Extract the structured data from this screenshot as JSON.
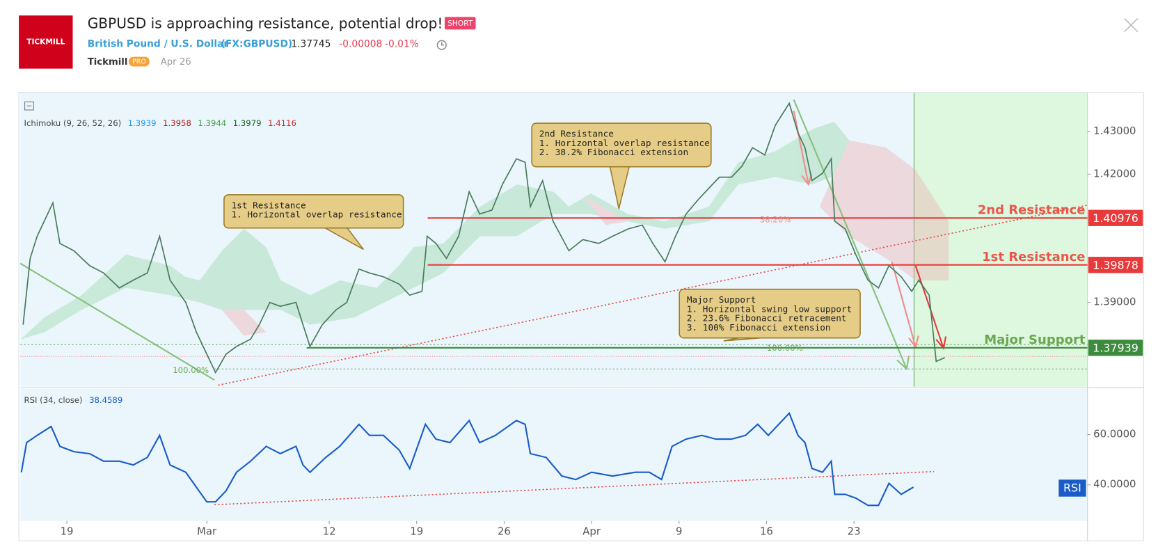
{
  "header": {
    "logo": "TICKMILL",
    "title": "GBPUSD is approaching resistance, potential drop!",
    "badge": "SHORT",
    "symbol_name": "British Pound / U.S. Dollar",
    "symbol": "(FX:GBPUSD)",
    "price": "1.37745",
    "change": "-0.00008",
    "change_pct": "-0.01%",
    "author": "Tickmill",
    "author_badge": "PRO",
    "date": "Apr 26"
  },
  "chart_data": [
    {
      "type": "line",
      "indicator": {
        "name": "Ichimoku (9, 26, 52, 26)",
        "values": [
          {
            "text": "1.3939",
            "color": "#2196f3"
          },
          {
            "text": "1.3958",
            "color": "#b71c1c"
          },
          {
            "text": "1.3944",
            "color": "#43a047"
          },
          {
            "text": "1.3979",
            "color": "#1b5e20"
          },
          {
            "text": "1.4116",
            "color": "#c62828"
          }
        ]
      },
      "x": [
        -2.5,
        -2.1,
        -1.7,
        -0.8,
        -0.4,
        0.4,
        1.3,
        2.1,
        3.0,
        3.8,
        4.6,
        5.3,
        5.9,
        6.8,
        7.4,
        8.0,
        8.5,
        9.1,
        9.7,
        10.5,
        11.0,
        11.6,
        12.2,
        13.1,
        13.5,
        13.9,
        14.6,
        15.4,
        16.0,
        16.7,
        17.3,
        18.1,
        19.0,
        19.6,
        20.3,
        20.6,
        21.1,
        21.7,
        22.4,
        23.0,
        23.6,
        24.3,
        24.9,
        25.7,
        26.2,
        26.5,
        27.2,
        27.8,
        28.7,
        29.5,
        30.4,
        31.2,
        32.1,
        32.9,
        33.5,
        34.2,
        34.8,
        35.4,
        36.1,
        36.7,
        37.3,
        38.0,
        38.6,
        39.2,
        39.9,
        40.5,
        41.3,
        41.8,
        42.2,
        42.6,
        43.2,
        43.7,
        43.9,
        44.5,
        45.1,
        45.8,
        46.4,
        47.0,
        47.7,
        48.3,
        48.7,
        49.3,
        49.7,
        50.2
      ],
      "series": [
        {
          "name": "GBPUSD",
          "color": "#4b7a5c",
          "values": [
            1.3848,
            1.4003,
            1.4055,
            1.4133,
            1.4038,
            1.4021,
            1.3986,
            1.3969,
            1.3934,
            1.3952,
            1.3969,
            1.4055,
            1.3952,
            1.39,
            1.3831,
            1.3779,
            1.3736,
            1.3779,
            1.3797,
            1.3814,
            1.3848,
            1.39,
            1.3891,
            1.39,
            1.3848,
            1.3797,
            1.3848,
            1.3883,
            1.39,
            1.3978,
            1.3969,
            1.396,
            1.3943,
            1.3917,
            1.3926,
            1.4055,
            1.4038,
            1.4003,
            1.4055,
            1.4159,
            1.4107,
            1.4116,
            1.4176,
            1.4236,
            1.4228,
            1.4124,
            1.4185,
            1.409,
            1.4021,
            1.4047,
            1.4038,
            1.4055,
            1.4072,
            1.4081,
            1.4038,
            1.3995,
            1.4055,
            1.4107,
            1.4141,
            1.4167,
            1.4193,
            1.4193,
            1.4219,
            1.4262,
            1.4245,
            1.4314,
            1.4366,
            1.4297,
            1.4262,
            1.4185,
            1.4202,
            1.4236,
            1.409,
            1.4072,
            1.4012,
            1.3952,
            1.3934,
            1.3986,
            1.396,
            1.3926,
            1.3952,
            1.3917,
            1.3762,
            1.3771
          ]
        }
      ],
      "xlim": [
        -2.66,
        58.35
      ],
      "xticks": [
        {
          "value": 0,
          "label": "19"
        },
        {
          "value": 8,
          "label": "Mar"
        },
        {
          "value": 15,
          "label": "12"
        },
        {
          "value": 20,
          "label": "19"
        },
        {
          "value": 25,
          "label": "26"
        },
        {
          "value": 30,
          "label": "Apr"
        },
        {
          "value": 35,
          "label": "9"
        },
        {
          "value": 40,
          "label": "16"
        },
        {
          "value": 45,
          "label": "23"
        }
      ],
      "ylim": [
        1.3703,
        1.439
      ],
      "yticks": [
        {
          "value": 1.39,
          "label": "1.39000"
        },
        {
          "value": 1.42,
          "label": "1.42000"
        },
        {
          "value": 1.43,
          "label": "1.43000"
        }
      ],
      "levels": [
        {
          "name": "2nd Resistance",
          "value": 1.40976,
          "color": "#e83a3a"
        },
        {
          "name": "1st Resistance",
          "value": 1.39878,
          "color": "#e83a3a"
        },
        {
          "name": "Major Support",
          "value": 1.37939,
          "color": "#3d8b3d"
        }
      ],
      "fib_labels": [
        "38.20%",
        "100.00%",
        "100.00%"
      ],
      "annotations": [
        {
          "lines": [
            "1st Resistance",
            "1. Horizontal overlap resistance"
          ]
        },
        {
          "lines": [
            "2nd Resistance",
            "1. Horizontal overlap resistance",
            "2. 38.2% Fibonacci extension"
          ]
        },
        {
          "lines": [
            "Major Support",
            "1. Horizontal swing low support",
            "2. 23.6% Fibonacci retracement",
            "3. 100% Fibonacci extension"
          ]
        }
      ]
    },
    {
      "type": "line",
      "indicator": {
        "name": "RSI (34, close)",
        "values": [
          {
            "text": "38.4589",
            "color": "#1a5cc8"
          }
        ]
      },
      "badge": "RSI",
      "x": [
        -2.6,
        -2.3,
        -1.7,
        -0.9,
        -0.4,
        0.4,
        1.3,
        2.1,
        3.0,
        3.8,
        4.6,
        5.3,
        5.9,
        6.8,
        7.4,
        8.0,
        8.5,
        9.1,
        9.7,
        10.5,
        11.4,
        12.2,
        13.1,
        13.5,
        13.9,
        14.8,
        15.6,
        16.7,
        17.3,
        18.1,
        19.0,
        19.6,
        20.5,
        21.1,
        21.9,
        23.0,
        23.6,
        24.5,
        25.7,
        26.2,
        26.5,
        27.4,
        28.3,
        29.1,
        30.0,
        31.2,
        32.5,
        33.3,
        34.0,
        34.6,
        35.4,
        36.3,
        37.1,
        38.0,
        38.8,
        39.5,
        40.1,
        40.7,
        41.3,
        41.8,
        42.2,
        42.6,
        43.2,
        43.7,
        43.9,
        44.5,
        45.1,
        45.8,
        46.4,
        47.0,
        47.7,
        48.4
      ],
      "series": [
        {
          "name": "RSI",
          "color": "#1a5cc8",
          "values": [
            45.0,
            56.8,
            59.7,
            63.2,
            55.3,
            53.2,
            52.4,
            49.4,
            49.4,
            47.9,
            50.9,
            59.7,
            47.9,
            45.0,
            39.1,
            33.2,
            33.2,
            37.6,
            45.0,
            49.4,
            55.3,
            52.4,
            55.3,
            47.9,
            45.0,
            50.9,
            55.3,
            64.1,
            59.7,
            59.7,
            53.8,
            46.5,
            64.1,
            58.2,
            56.8,
            65.6,
            56.8,
            59.7,
            65.6,
            64.1,
            52.4,
            50.9,
            43.5,
            42.1,
            45.0,
            43.5,
            45.0,
            45.0,
            42.1,
            55.3,
            58.2,
            59.7,
            58.2,
            58.2,
            59.7,
            64.1,
            59.7,
            64.1,
            68.5,
            59.7,
            56.8,
            46.5,
            45.0,
            49.4,
            36.2,
            36.2,
            34.7,
            31.8,
            31.8,
            40.6,
            36.2,
            39.1
          ]
        }
      ],
      "xlim": [
        -2.66,
        58.35
      ],
      "ylim": [
        25.6,
        78.2
      ],
      "yticks": [
        {
          "value": 60,
          "label": "60.0000"
        },
        {
          "value": 40,
          "label": "40.0000"
        }
      ]
    }
  ]
}
